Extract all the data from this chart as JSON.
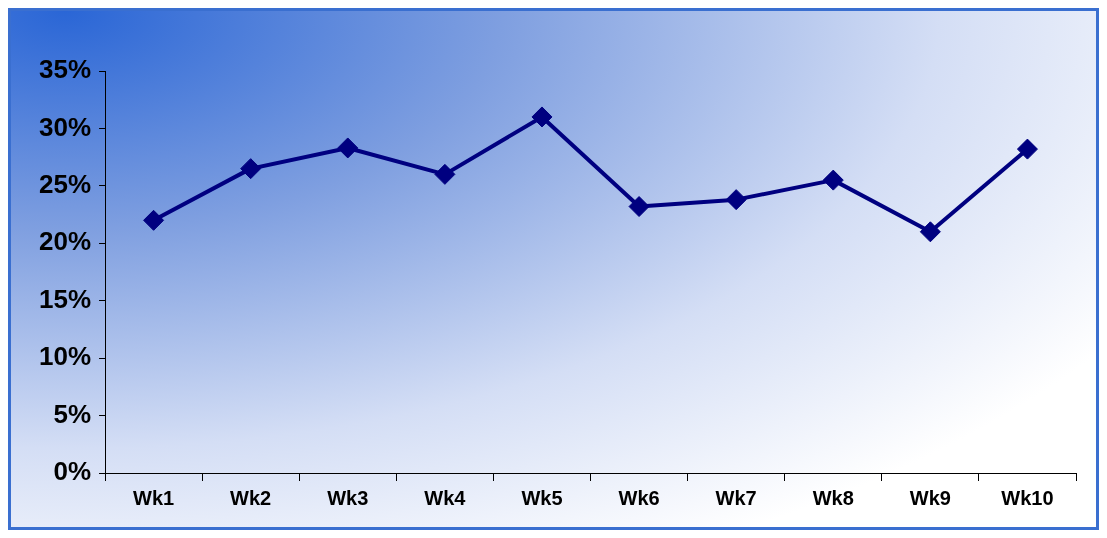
{
  "chart_data": {
    "type": "line",
    "categories": [
      "Wk1",
      "Wk2",
      "Wk3",
      "Wk4",
      "Wk5",
      "Wk6",
      "Wk7",
      "Wk8",
      "Wk9",
      "Wk10"
    ],
    "series": [
      {
        "color": "#000080",
        "values": [
          22,
          26.5,
          28.3,
          26,
          31,
          23.2,
          23.8,
          25.5,
          21,
          28.2
        ]
      }
    ],
    "ylim": [
      0,
      35
    ],
    "yticks": [
      {
        "value": 0,
        "label": "0%"
      },
      {
        "value": 5,
        "label": "5%"
      },
      {
        "value": 10,
        "label": "10%"
      },
      {
        "value": 15,
        "label": "15%"
      },
      {
        "value": 20,
        "label": "20%"
      },
      {
        "value": 25,
        "label": "25%"
      },
      {
        "value": 30,
        "label": "30%"
      },
      {
        "value": 35,
        "label": "35%"
      }
    ],
    "grid": false,
    "legend": false,
    "marker": "diamond",
    "line_style": "solid"
  }
}
